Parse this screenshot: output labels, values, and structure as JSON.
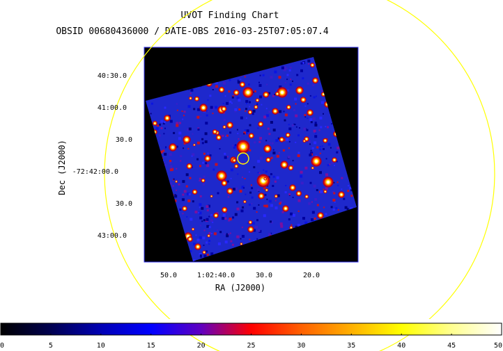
{
  "header": {
    "title": "UVOT Finding Chart",
    "subtitle": "OBSID 00680436000 / DATE-OBS 2016-03-25T07:05:07.4"
  },
  "axes": {
    "x_label": "RA (J2000)",
    "y_label": "Dec (J2000)",
    "x_ticks": [
      "50.0",
      "1:02:40.0",
      "30.0",
      "20.0"
    ],
    "y_ticks": [
      "40:30.0",
      "41:00.0",
      "30.0",
      "-72:42:00.0",
      "30.0",
      "43:00.0"
    ]
  },
  "colorbar": {
    "min": 0,
    "max": 50,
    "tick_labels": [
      "0",
      "5",
      "10",
      "15",
      "20",
      "25",
      "30",
      "35",
      "40",
      "45",
      "50"
    ],
    "stops": [
      {
        "value": 0,
        "color": "#000000"
      },
      {
        "value": 5,
        "color": "#000050"
      },
      {
        "value": 10,
        "color": "#0000b4"
      },
      {
        "value": 15,
        "color": "#0000ff"
      },
      {
        "value": 20,
        "color": "#6000c0"
      },
      {
        "value": 25,
        "color": "#ff0000"
      },
      {
        "value": 30,
        "color": "#ff6000"
      },
      {
        "value": 35,
        "color": "#ffb000"
      },
      {
        "value": 40,
        "color": "#ffff00"
      },
      {
        "value": 45,
        "color": "#ffff90"
      },
      {
        "value": 50,
        "color": "#ffffff"
      }
    ]
  },
  "colors": {
    "field_background": "#1e28cc",
    "frame": "#3a3aff",
    "circles": "#ffff00"
  }
}
